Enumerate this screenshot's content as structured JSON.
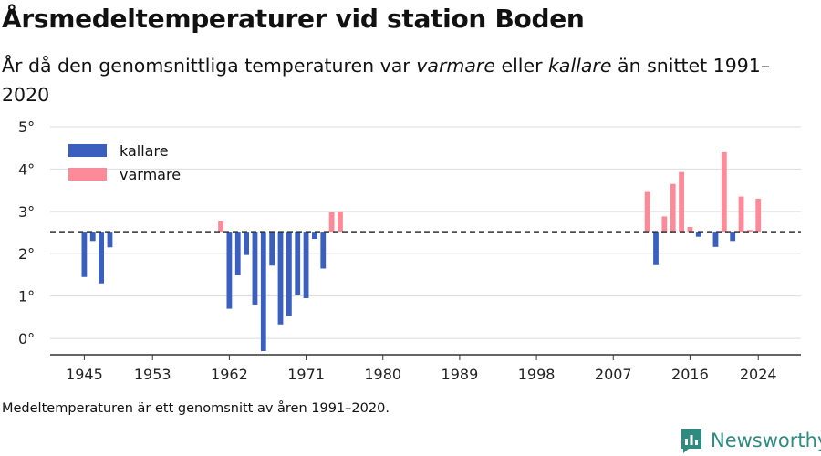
{
  "title": "Årsmedeltemperaturer vid station Boden",
  "subtitle": {
    "part1": "År då den genomsnittliga temperaturen var ",
    "warm_word": "varmare",
    "part2": " eller ",
    "cold_word": "kallare",
    "part3": " än snittet 1991–2020"
  },
  "footnote": "Medeltemperaturen är ett genomsnitt av åren 1991–2020.",
  "brand": {
    "name": "Newsworthy",
    "icon": "bar-chart-logo-icon"
  },
  "colors": {
    "kallare": "#3a5fbf",
    "varmare": "#fc8a98",
    "grid": "#dddddd",
    "reference": "#333333",
    "brand": "#2f8a80"
  },
  "legend": [
    {
      "key": "kallare",
      "label": "kallare"
    },
    {
      "key": "varmare",
      "label": "varmare"
    }
  ],
  "chart_data": {
    "type": "bar",
    "reference_value": 2.52,
    "ylim": [
      -0.3,
      5
    ],
    "yticks": [
      0,
      1,
      2,
      3,
      4,
      5
    ],
    "ytick_labels": [
      "0°",
      "1°",
      "2°",
      "3°",
      "4°",
      "5°"
    ],
    "xlim": [
      1941,
      2029
    ],
    "xticks": [
      1945,
      1953,
      1962,
      1971,
      1980,
      1989,
      1998,
      2007,
      2016,
      2024
    ],
    "series": [
      {
        "name": "kallare",
        "points": [
          [
            1945,
            1.45
          ],
          [
            1946,
            2.3
          ],
          [
            1947,
            1.3
          ],
          [
            1948,
            2.15
          ],
          [
            1962,
            0.7
          ],
          [
            1963,
            1.5
          ],
          [
            1964,
            1.97
          ],
          [
            1965,
            0.8
          ],
          [
            1966,
            -0.3
          ],
          [
            1967,
            1.72
          ],
          [
            1968,
            0.33
          ],
          [
            1969,
            0.53
          ],
          [
            1970,
            1.03
          ],
          [
            1971,
            0.95
          ],
          [
            1972,
            2.35
          ],
          [
            1973,
            1.65
          ],
          [
            2012,
            1.73
          ],
          [
            2017,
            2.4
          ],
          [
            2019,
            2.16
          ],
          [
            2021,
            2.3
          ]
        ]
      },
      {
        "name": "varmare",
        "points": [
          [
            1961,
            2.78
          ],
          [
            1974,
            2.98
          ],
          [
            1975,
            3.0
          ],
          [
            2011,
            3.48
          ],
          [
            2013,
            2.88
          ],
          [
            2014,
            3.65
          ],
          [
            2015,
            3.93
          ],
          [
            2016,
            2.63
          ],
          [
            2020,
            4.4
          ],
          [
            2022,
            3.35
          ],
          [
            2023,
            2.56
          ],
          [
            2024,
            3.3
          ]
        ]
      }
    ]
  }
}
